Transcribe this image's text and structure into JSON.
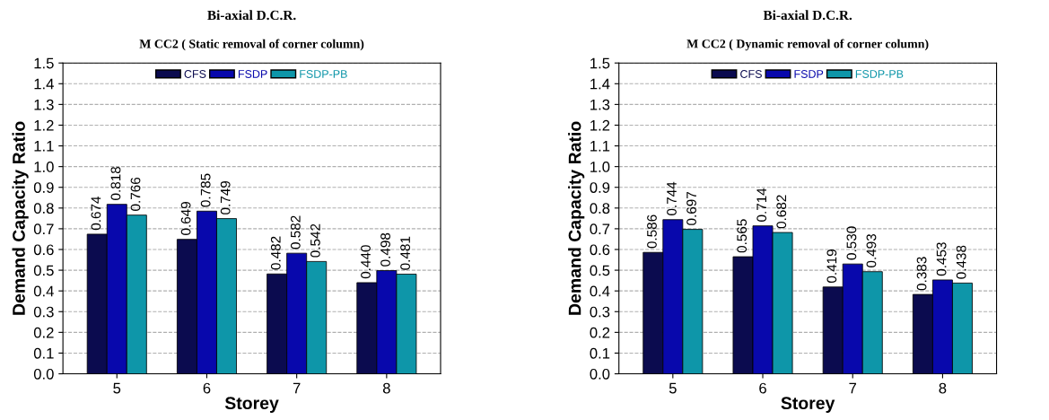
{
  "chart_data": [
    {
      "type": "bar",
      "title": "Bi-axial D.C.R.",
      "subtitle": "M CC2 ( Static removal of corner column)",
      "xlabel": "Storey",
      "ylabel": "Demand Capacity Ratio",
      "categories": [
        "5",
        "6",
        "7",
        "8"
      ],
      "series": [
        {
          "name": "CFS",
          "color": "#0b0b4f",
          "values": [
            0.674,
            0.649,
            0.482,
            0.44
          ],
          "value_labels": [
            "0.674",
            "0.649",
            "0.482",
            "0.440"
          ]
        },
        {
          "name": "FSDP",
          "color": "#0808ac",
          "values": [
            0.818,
            0.785,
            0.582,
            0.498
          ],
          "value_labels": [
            "0.818",
            "0.785",
            "0.582",
            "0.498"
          ]
        },
        {
          "name": "FSDP-PB",
          "color": "#0e96a9",
          "values": [
            0.766,
            0.749,
            0.542,
            0.481
          ],
          "value_labels": [
            "0.766",
            "0.749",
            "0.542",
            "0.481"
          ]
        }
      ],
      "ylim": [
        0,
        1.5
      ],
      "yticks": [
        {
          "value": 0,
          "label": "0.0"
        },
        {
          "value": 0.1,
          "label": "0.1"
        },
        {
          "value": 0.2,
          "label": "0.2"
        },
        {
          "value": 0.3,
          "label": "0.3"
        },
        {
          "value": 0.4,
          "label": "0.4"
        },
        {
          "value": 0.5,
          "label": "0.5"
        },
        {
          "value": 0.6,
          "label": "0.6"
        },
        {
          "value": 0.7,
          "label": "0.7"
        },
        {
          "value": 0.8,
          "label": "0.8"
        },
        {
          "value": 0.9,
          "label": "0.9"
        },
        {
          "value": 1,
          "label": "1.0"
        },
        {
          "value": 1.1,
          "label": "1.1"
        },
        {
          "value": 1.2,
          "label": "1.2"
        },
        {
          "value": 1.3,
          "label": "1.3"
        },
        {
          "value": 1.4,
          "label": "1.4"
        },
        {
          "value": 1.5,
          "label": "1.5"
        }
      ],
      "grid": "y",
      "legend": "top"
    },
    {
      "type": "bar",
      "title": "Bi-axial D.C.R.",
      "subtitle": "M CC2 ( Dynamic removal of corner column)",
      "xlabel": "Storey",
      "ylabel": "Demand Capacity Ratio",
      "categories": [
        "5",
        "6",
        "7",
        "8"
      ],
      "series": [
        {
          "name": "CFS",
          "color": "#0b0b4f",
          "values": [
            0.586,
            0.565,
            0.419,
            0.383
          ],
          "value_labels": [
            "0.586",
            "0.565",
            "0.419",
            "0.383"
          ]
        },
        {
          "name": "FSDP",
          "color": "#0808ac",
          "values": [
            0.744,
            0.714,
            0.53,
            0.453
          ],
          "value_labels": [
            "0.744",
            "0.714",
            "0.530",
            "0.453"
          ]
        },
        {
          "name": "FSDP-PB",
          "color": "#0e96a9",
          "values": [
            0.697,
            0.682,
            0.493,
            0.438
          ],
          "value_labels": [
            "0.697",
            "0.682",
            "0.493",
            "0.438"
          ]
        }
      ],
      "ylim": [
        0,
        1.5
      ],
      "yticks": [
        {
          "value": 0,
          "label": "0.0"
        },
        {
          "value": 0.1,
          "label": "0.1"
        },
        {
          "value": 0.2,
          "label": "0.2"
        },
        {
          "value": 0.3,
          "label": "0.3"
        },
        {
          "value": 0.4,
          "label": "0.4"
        },
        {
          "value": 0.5,
          "label": "0.5"
        },
        {
          "value": 0.6,
          "label": "0.6"
        },
        {
          "value": 0.7,
          "label": "0.7"
        },
        {
          "value": 0.8,
          "label": "0.8"
        },
        {
          "value": 0.9,
          "label": "0.9"
        },
        {
          "value": 1,
          "label": "1.0"
        },
        {
          "value": 1.1,
          "label": "1.1"
        },
        {
          "value": 1.2,
          "label": "1.2"
        },
        {
          "value": 1.3,
          "label": "1.3"
        },
        {
          "value": 1.4,
          "label": "1.4"
        },
        {
          "value": 1.5,
          "label": "1.5"
        }
      ],
      "grid": "y",
      "legend": "top"
    }
  ]
}
